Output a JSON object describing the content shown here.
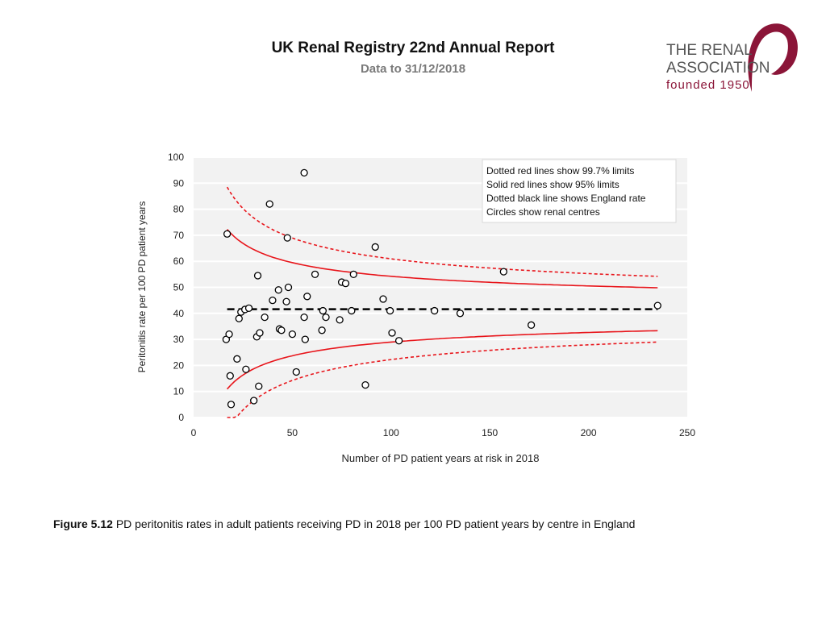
{
  "header": {
    "title": "UK Renal Registry 22nd Annual Report",
    "subtitle": "Data to 31/12/2018"
  },
  "logo": {
    "line1": "THE RENAL",
    "line2": "ASSOCIATION",
    "line3": "founded 1950"
  },
  "caption": {
    "label": "Figure 5.12",
    "text": "PD peritonitis rates in adult patients receiving PD in 2018 per 100 PD patient years by centre in England"
  },
  "colors": {
    "limit_red": "#e8151b",
    "brand": "#8b1538",
    "plot_bg": "#f2f2f2"
  },
  "chart_data": {
    "type": "scatter",
    "xlabel": "Number of PD patient years at risk in 2018",
    "ylabel": "Peritonitis rate per 100 PD patient years",
    "xlim": [
      0,
      250
    ],
    "ylim": [
      0,
      100
    ],
    "xticks": [
      0,
      50,
      100,
      150,
      200,
      250
    ],
    "yticks": [
      0,
      10,
      20,
      30,
      40,
      50,
      60,
      70,
      80,
      90,
      100
    ],
    "grid": true,
    "england_rate": 41.6,
    "limit_x_range": [
      17,
      235
    ],
    "legend": [
      "Dotted red lines show 99.7% limits",
      "Solid red lines show 95% limits",
      "Dotted black line shows England rate",
      "Circles show renal centres"
    ],
    "legend_position": "top-right",
    "points": [
      {
        "x": 17,
        "y": 70.5
      },
      {
        "x": 16.5,
        "y": 30
      },
      {
        "x": 18,
        "y": 32
      },
      {
        "x": 18.5,
        "y": 16
      },
      {
        "x": 19,
        "y": 5
      },
      {
        "x": 22,
        "y": 22.5
      },
      {
        "x": 23,
        "y": 38
      },
      {
        "x": 24,
        "y": 40.5
      },
      {
        "x": 26,
        "y": 41.5
      },
      {
        "x": 26.5,
        "y": 18.5
      },
      {
        "x": 28,
        "y": 42
      },
      {
        "x": 30.5,
        "y": 6.5
      },
      {
        "x": 32,
        "y": 31
      },
      {
        "x": 32.5,
        "y": 54.5
      },
      {
        "x": 33,
        "y": 12
      },
      {
        "x": 33.5,
        "y": 32.5
      },
      {
        "x": 36,
        "y": 38.5
      },
      {
        "x": 38.5,
        "y": 82
      },
      {
        "x": 40,
        "y": 45
      },
      {
        "x": 43,
        "y": 49
      },
      {
        "x": 43.5,
        "y": 34
      },
      {
        "x": 44.5,
        "y": 33.5
      },
      {
        "x": 47,
        "y": 44.5
      },
      {
        "x": 47.5,
        "y": 69
      },
      {
        "x": 48,
        "y": 50
      },
      {
        "x": 50,
        "y": 32
      },
      {
        "x": 52,
        "y": 17.5
      },
      {
        "x": 56,
        "y": 94
      },
      {
        "x": 56,
        "y": 38.5
      },
      {
        "x": 56.5,
        "y": 30
      },
      {
        "x": 57.5,
        "y": 46.5
      },
      {
        "x": 61.5,
        "y": 55
      },
      {
        "x": 65,
        "y": 33.5
      },
      {
        "x": 65.5,
        "y": 41
      },
      {
        "x": 67,
        "y": 38.5
      },
      {
        "x": 74,
        "y": 37.5
      },
      {
        "x": 75,
        "y": 52
      },
      {
        "x": 77,
        "y": 51.5
      },
      {
        "x": 80,
        "y": 41
      },
      {
        "x": 81,
        "y": 55
      },
      {
        "x": 87,
        "y": 12.5
      },
      {
        "x": 92,
        "y": 65.5
      },
      {
        "x": 96,
        "y": 45.5
      },
      {
        "x": 99.5,
        "y": 41
      },
      {
        "x": 100.5,
        "y": 32.5
      },
      {
        "x": 104,
        "y": 29.5
      },
      {
        "x": 122,
        "y": 41
      },
      {
        "x": 135,
        "y": 40
      },
      {
        "x": 157,
        "y": 56
      },
      {
        "x": 171,
        "y": 35.5
      },
      {
        "x": 235,
        "y": 43
      }
    ]
  }
}
